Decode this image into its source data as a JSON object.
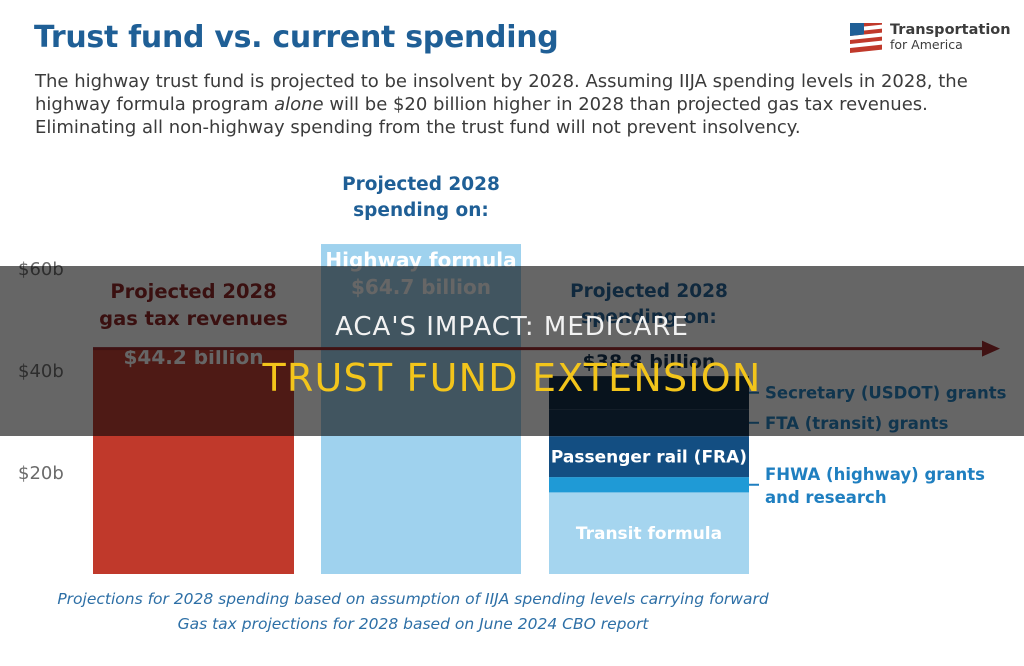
{
  "header": {
    "title": "Trust fund vs. current spending",
    "subtitle_part1": "The highway trust fund is projected to be insolvent by 2028. Assuming IIJA spending levels in 2028, the highway formula program ",
    "subtitle_emphasis": "alone",
    "subtitle_part2": " will be $20 billion higher in 2028 than projected gas tax revenues. Eliminating all non-highway spending from the trust fund will not prevent insolvency."
  },
  "logo": {
    "line1": "Transportation",
    "line2": "for America",
    "icon": "american-flag-icon"
  },
  "overlay": {
    "line1": "ACA'S IMPACT: MEDICARE",
    "line2": "TRUST FUND EXTENSION",
    "line2_color": "#f3c51b"
  },
  "notes": {
    "line1": "Projections for 2028 spending based on assumption of IIJA spending levels carrying forward",
    "line2": "Gas tax projections for 2028 based on June 2024 CBO report"
  },
  "chart_data": {
    "type": "bar",
    "unit": "billion USD",
    "ylim": [
      0,
      68
    ],
    "yticks": [
      {
        "value": 20,
        "label": "$20b"
      },
      {
        "value": 40,
        "label": "$40b"
      },
      {
        "value": 60,
        "label": "$60b"
      }
    ],
    "grid": false,
    "bars": [
      {
        "name_lines": [
          "Projected 2028",
          "gas tax revenues"
        ],
        "value": 44.2,
        "value_label": "$44.2 billion",
        "color": "#c0392b"
      },
      {
        "header_lines": [
          "Projected 2028",
          "spending on:"
        ],
        "name_lines": [
          "Highway formula"
        ],
        "value": 64.7,
        "value_label": "$64.7 billion",
        "color": "#9fd2ee"
      },
      {
        "header_lines": [
          "Projected 2028",
          "spending on:"
        ],
        "value": 38.8,
        "value_label": "$38.8 billion",
        "stack": [
          {
            "name": "Transit formula",
            "value": 16.0,
            "color": "#a5d5ef",
            "label_inside": true
          },
          {
            "name": "FHWA (highway) grants and research",
            "label_lines": [
              "FHWA (highway) grants",
              "and research"
            ],
            "value": 3.0,
            "color": "#1f9ad6",
            "label_inside": false
          },
          {
            "name": "Passenger rail (FRA)",
            "value": 8.0,
            "color": "#134e82",
            "label_inside": true
          },
          {
            "name": "FTA (transit) grants",
            "value": 5.3,
            "color": "#0d2c4b",
            "label_inside": false
          },
          {
            "name": "Secretary (USDOT) grants",
            "value": 6.5,
            "color": "#0a2540",
            "label_inside": false
          }
        ]
      }
    ],
    "reference_line": {
      "value": 44.2,
      "color": "#9b2226"
    }
  }
}
